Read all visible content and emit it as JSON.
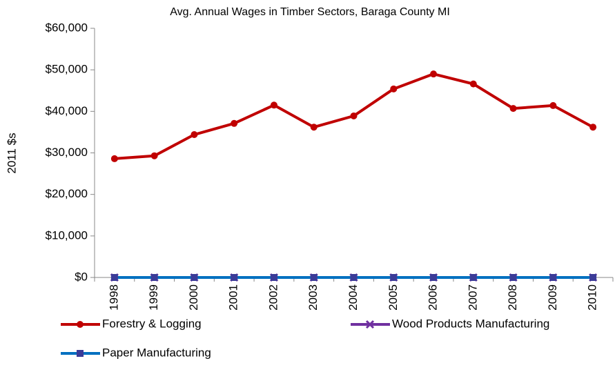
{
  "chart_data": {
    "type": "line",
    "title": "Avg. Annual Wages in Timber Sectors, Baraga County MI",
    "y_label": "2011 $s",
    "categories": [
      "1998",
      "1999",
      "2000",
      "2001",
      "2002",
      "2003",
      "2004",
      "2005",
      "2006",
      "2007",
      "2008",
      "2009",
      "2010"
    ],
    "series": [
      {
        "name": "Forestry & Logging",
        "color": "#c00000",
        "marker": "circle",
        "values": [
          28600,
          29300,
          34400,
          37100,
          41500,
          36200,
          38900,
          45400,
          49000,
          46600,
          40700,
          41400,
          36200
        ]
      },
      {
        "name": "Wood Products Manufacturing",
        "color": "#7030a0",
        "marker": "x",
        "values": [
          0,
          0,
          0,
          0,
          0,
          0,
          0,
          0,
          0,
          0,
          0,
          0,
          0
        ]
      },
      {
        "name": "Paper Manufacturing",
        "color": "#0070c0",
        "marker": "square",
        "values": [
          0,
          0,
          0,
          0,
          0,
          0,
          0,
          0,
          0,
          0,
          0,
          0,
          0
        ]
      }
    ],
    "ylim": [
      0,
      60000
    ],
    "yticks": [
      {
        "value": 0,
        "label": "$0"
      },
      {
        "value": 10000,
        "label": "$10,000"
      },
      {
        "value": 20000,
        "label": "$20,000"
      },
      {
        "value": 30000,
        "label": "$30,000"
      },
      {
        "value": 40000,
        "label": "$40,000"
      },
      {
        "value": 50000,
        "label": "$50,000"
      },
      {
        "value": 60000,
        "label": "$60,000"
      }
    ],
    "grid": false,
    "legend": "bottom"
  }
}
